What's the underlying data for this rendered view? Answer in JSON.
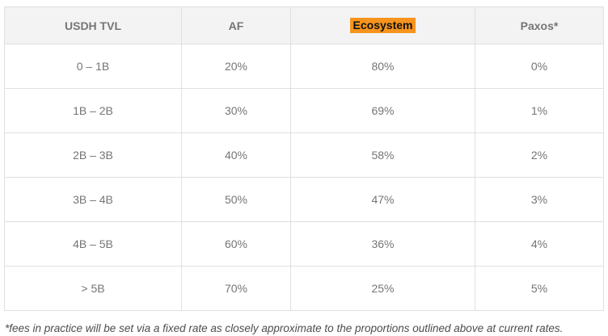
{
  "table": {
    "headers": [
      "USDH TVL",
      "AF",
      "Ecosystem",
      "Paxos*"
    ],
    "highlighted_header": "Ecosystem",
    "rows": [
      [
        "0 – 1B",
        "20%",
        "80%",
        "0%"
      ],
      [
        "1B – 2B",
        "30%",
        "69%",
        "1%"
      ],
      [
        "2B – 3B",
        "40%",
        "58%",
        "2%"
      ],
      [
        "3B – 4B",
        "50%",
        "47%",
        "3%"
      ],
      [
        "4B – 5B",
        "60%",
        "36%",
        "4%"
      ],
      [
        "> 5B",
        "70%",
        "25%",
        "5%"
      ]
    ]
  },
  "footnote": "*fees in practice will be set via a fixed rate as closely approximate to the proportions outlined above at current rates.",
  "colors": {
    "highlight_orange": "#f7941e",
    "header_background": "#f3f3f3",
    "border": "#e0e0e0",
    "header_text": "#757575",
    "body_text": "#757575",
    "footnote_text": "#4d4d4d"
  }
}
